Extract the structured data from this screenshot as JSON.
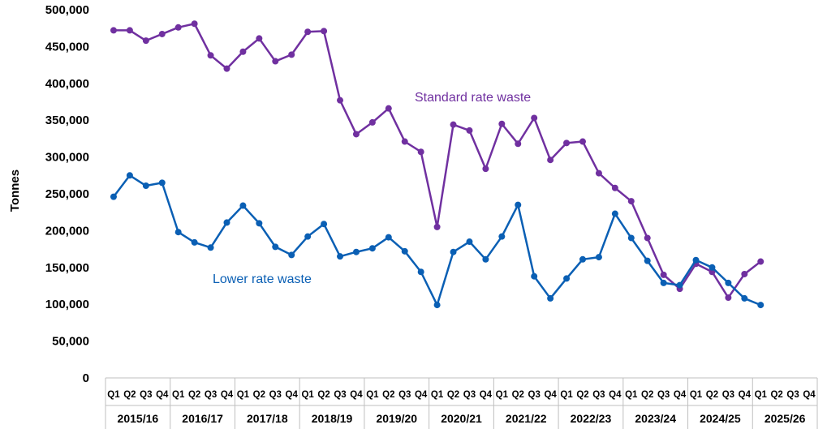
{
  "chart_data": {
    "type": "line",
    "title": "",
    "xlabel": "",
    "ylabel": "Tonnes",
    "ylim": [
      0,
      500000
    ],
    "yticks": [
      0,
      50000,
      100000,
      150000,
      200000,
      250000,
      300000,
      350000,
      400000,
      450000,
      500000
    ],
    "ytick_labels": [
      "0",
      "50,000",
      "100,000",
      "150,000",
      "200,000",
      "250,000",
      "300,000",
      "350,000",
      "400,000",
      "450,000",
      "500,000"
    ],
    "grid": false,
    "legend": "none",
    "quarters": [
      "Q1",
      "Q2",
      "Q3",
      "Q4"
    ],
    "years": [
      "2015/16",
      "2016/17",
      "2017/18",
      "2018/19",
      "2019/20",
      "2020/21",
      "2021/22",
      "2022/23",
      "2023/24",
      "2024/25",
      "2025/26"
    ],
    "series": [
      {
        "name": "Standard rate waste",
        "color": "#7030a0",
        "values": [
          472000,
          472000,
          458000,
          467000,
          476000,
          481000,
          438000,
          420000,
          443000,
          461000,
          430000,
          439000,
          470000,
          471000,
          377000,
          331000,
          347000,
          366000,
          321000,
          307000,
          205000,
          344000,
          336000,
          284000,
          345000,
          318000,
          353000,
          296000,
          319000,
          321000,
          278000,
          258000,
          240000,
          190000,
          140000,
          121000,
          155000,
          144000,
          109000,
          141000,
          158000
        ]
      },
      {
        "name": "Lower rate waste",
        "color": "#0a5fb4",
        "values": [
          246000,
          275000,
          261000,
          265000,
          198000,
          184000,
          177000,
          211000,
          234000,
          210000,
          178000,
          167000,
          192000,
          209000,
          165000,
          171000,
          176000,
          191000,
          172000,
          144000,
          99000,
          171000,
          185000,
          161000,
          192000,
          235000,
          138000,
          108000,
          135000,
          161000,
          164000,
          223000,
          190000,
          159000,
          129000,
          126000,
          160000,
          150000,
          129000,
          108000,
          99000
        ]
      }
    ]
  }
}
